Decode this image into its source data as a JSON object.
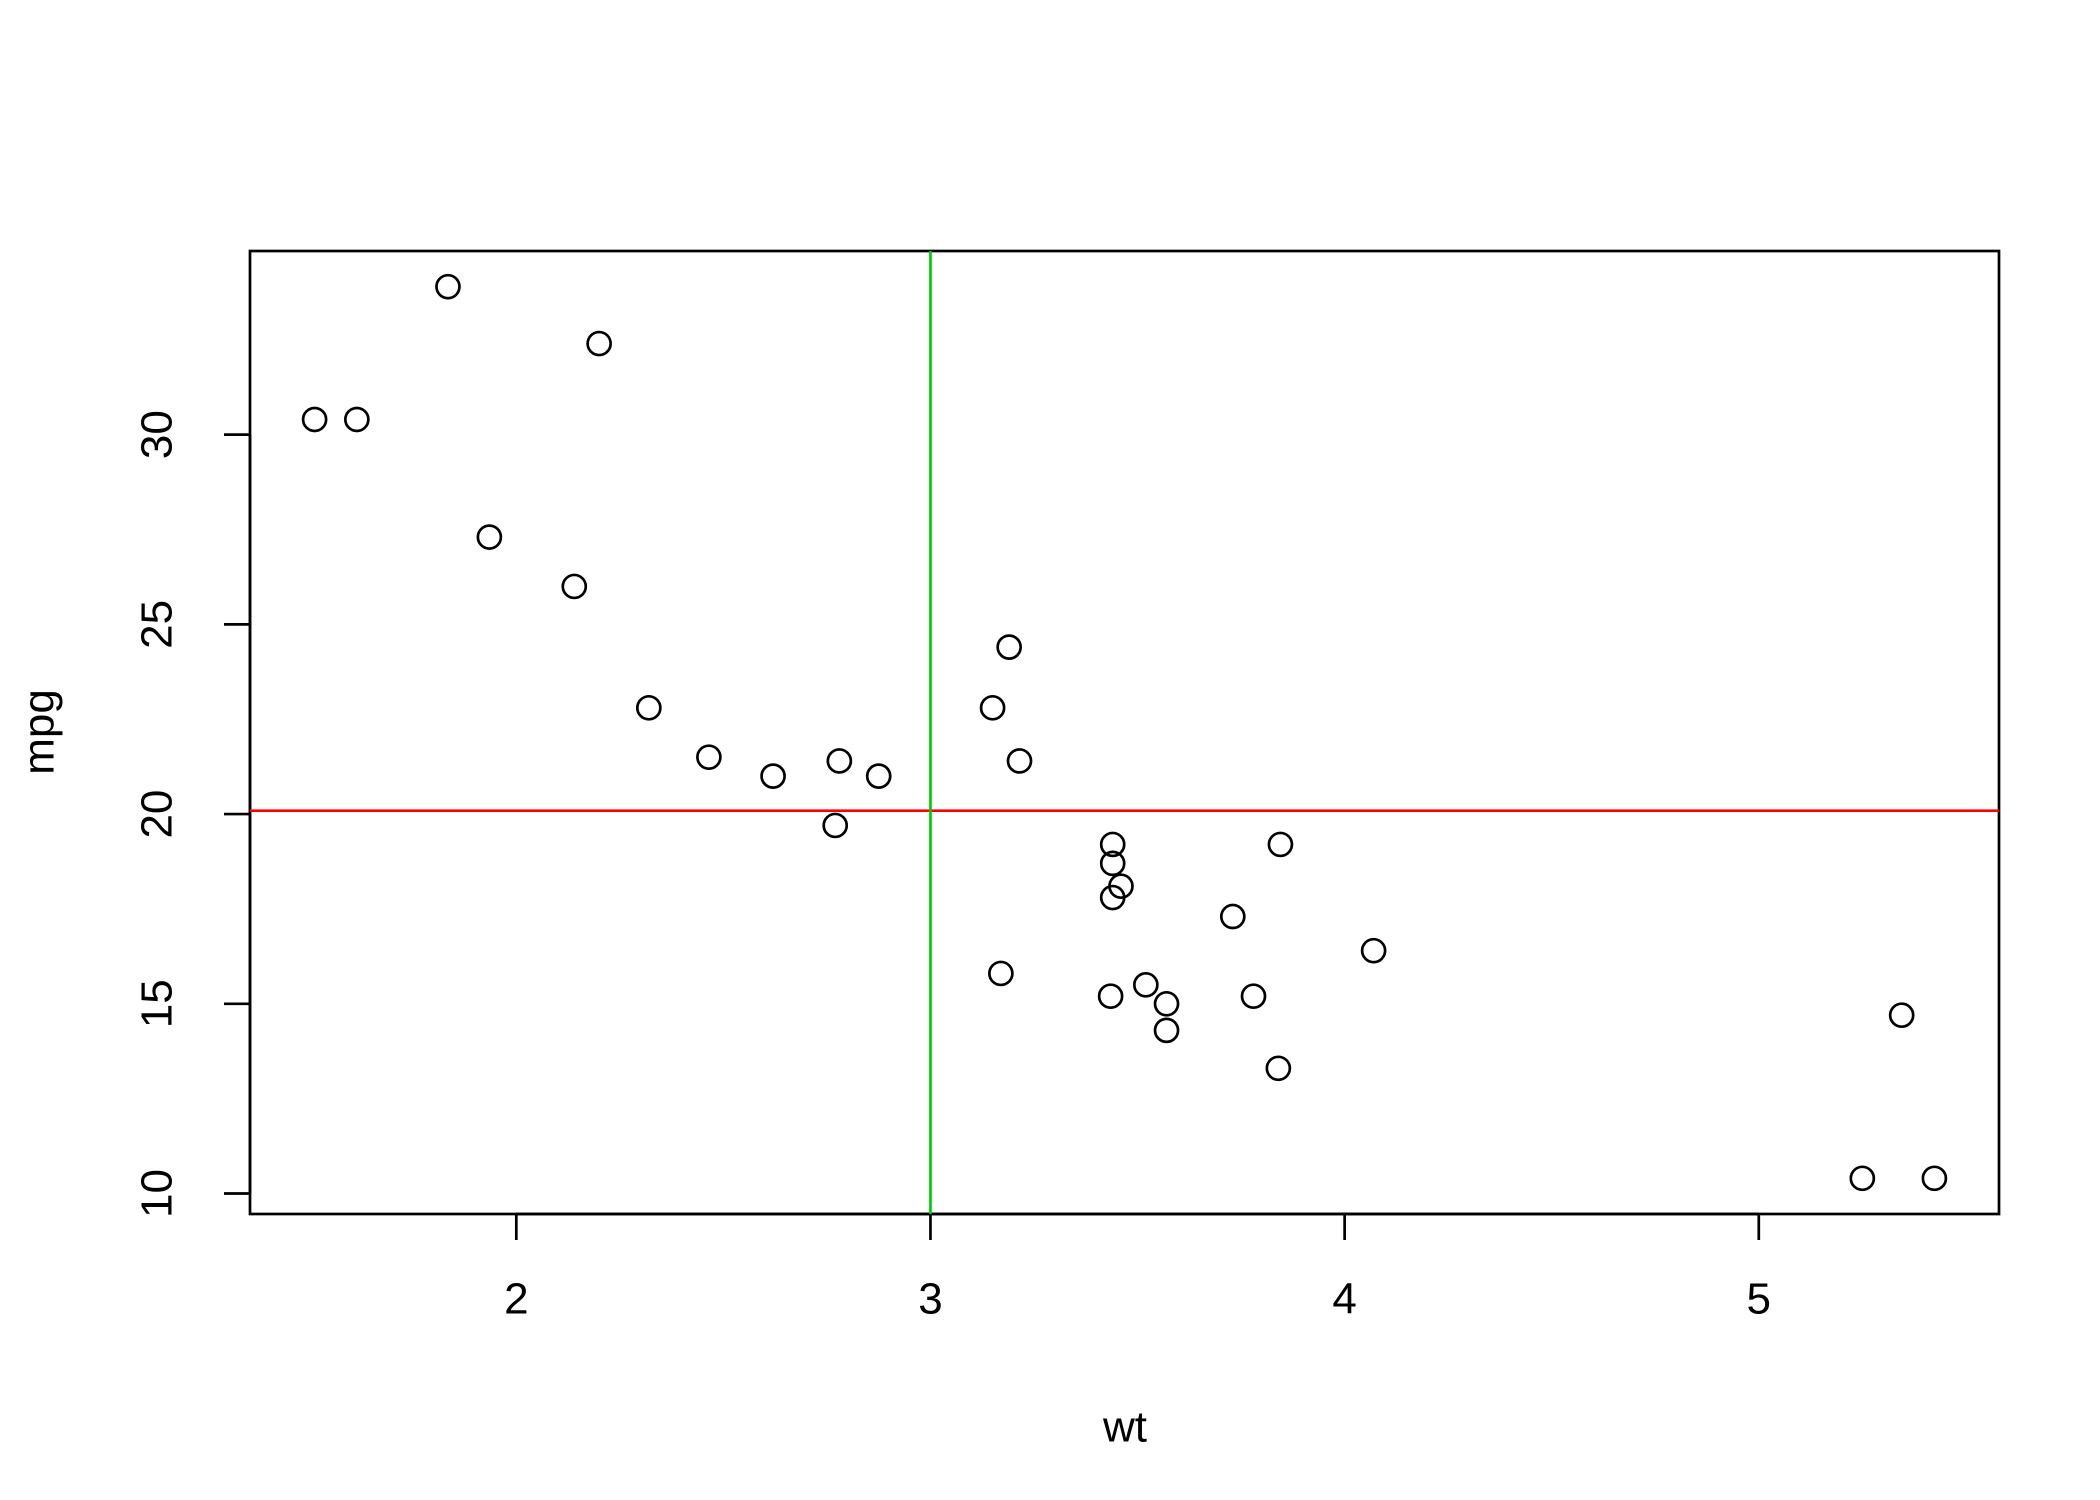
{
  "chart_data": {
    "type": "scatter",
    "x_label": "wt",
    "y_label": "mpg",
    "x": [
      2.62,
      2.875,
      2.32,
      3.215,
      3.44,
      3.46,
      3.57,
      3.19,
      3.15,
      3.44,
      3.44,
      4.07,
      3.73,
      3.78,
      5.25,
      5.424,
      5.345,
      2.2,
      1.615,
      1.835,
      2.465,
      3.52,
      3.435,
      3.84,
      3.845,
      1.935,
      2.14,
      1.513,
      3.17,
      2.77,
      3.57,
      2.78
    ],
    "values": [
      21.0,
      21.0,
      22.8,
      21.4,
      18.7,
      18.1,
      14.3,
      24.4,
      22.8,
      19.2,
      17.8,
      16.4,
      17.3,
      15.2,
      10.4,
      10.4,
      14.7,
      32.4,
      30.4,
      33.9,
      21.5,
      15.5,
      15.2,
      13.3,
      19.2,
      27.3,
      26.0,
      30.4,
      15.8,
      19.7,
      15.0,
      21.4
    ],
    "color": "#000000",
    "xlim": [
      1.357,
      5.58
    ],
    "ylim": [
      9.46,
      34.84
    ],
    "xticks": [
      2,
      3,
      4,
      5
    ],
    "yticks": [
      10,
      15,
      20,
      25,
      30
    ],
    "hline": {
      "value": 20.09,
      "color": "#ff0000"
    },
    "vline": {
      "value": 3,
      "color": "#00cd00"
    }
  }
}
